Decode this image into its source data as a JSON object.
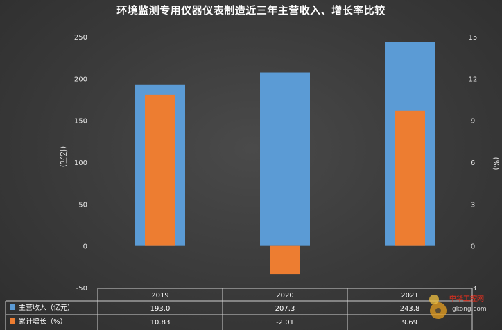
{
  "chart_data": {
    "type": "bar",
    "title": "环境监测专用仪器仪表制造近三年主营收入、增长率比较",
    "categories": [
      "2019",
      "2020",
      "2021"
    ],
    "series": [
      {
        "name": "主营收入（亿元）",
        "axis": "left",
        "color": "#5b9bd5",
        "values": [
          193.0,
          207.3,
          243.8
        ],
        "labels": [
          "193.0",
          "207.3",
          "243.8"
        ]
      },
      {
        "name": "累计增长（%）",
        "axis": "right",
        "color": "#ed7d31",
        "values": [
          10.83,
          -2.01,
          9.69
        ],
        "labels": [
          "10.83",
          "-2.01",
          "9.69"
        ]
      }
    ],
    "ylabel": "(亿元)",
    "y2label": "(%)",
    "ylim": [
      -50,
      250
    ],
    "y2lim": [
      -3,
      15
    ],
    "yticks": [
      "-50",
      "0",
      "50",
      "100",
      "150",
      "200",
      "250"
    ],
    "y2ticks": [
      "-3",
      "0",
      "3",
      "6",
      "9",
      "12",
      "15"
    ],
    "grid": false,
    "legend": "data-table"
  },
  "watermark": {
    "site": "中华工控网",
    "url": "gkong.com"
  }
}
